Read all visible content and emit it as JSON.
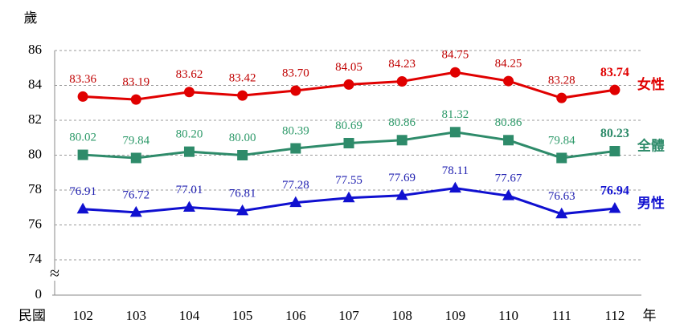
{
  "chart_data": {
    "type": "line",
    "y_label": "歲",
    "x_label_prefix": "民國",
    "x_label_suffix": "年",
    "categories": [
      "102",
      "103",
      "104",
      "105",
      "106",
      "107",
      "108",
      "109",
      "110",
      "111",
      "112"
    ],
    "series": [
      {
        "name": "女性",
        "color": "#e00000",
        "label_color": "#c00000",
        "marker": "circle",
        "values": [
          83.36,
          83.19,
          83.62,
          83.42,
          83.7,
          84.05,
          84.23,
          84.75,
          84.25,
          83.28,
          83.74
        ],
        "value_labels": [
          "83.36",
          "83.19",
          "83.62",
          "83.42",
          "83.70",
          "84.05",
          "84.23",
          "84.75",
          "84.25",
          "83.28",
          "83.74"
        ]
      },
      {
        "name": "全體",
        "color": "#2e8b6a",
        "label_color": "#2e9a6a",
        "marker": "square",
        "values": [
          80.02,
          79.84,
          80.2,
          80.0,
          80.39,
          80.69,
          80.86,
          81.32,
          80.86,
          79.84,
          80.23
        ],
        "value_labels": [
          "80.02",
          "79.84",
          "80.20",
          "80.00",
          "80.39",
          "80.69",
          "80.86",
          "81.32",
          "80.86",
          "79.84",
          "80.23"
        ]
      },
      {
        "name": "男性",
        "color": "#1010d0",
        "label_color": "#2020b0",
        "marker": "triangle",
        "values": [
          76.91,
          76.72,
          77.01,
          76.81,
          77.28,
          77.55,
          77.69,
          78.11,
          77.67,
          76.63,
          76.94
        ],
        "value_labels": [
          "76.91",
          "76.72",
          "77.01",
          "76.81",
          "77.28",
          "77.55",
          "77.69",
          "78.11",
          "77.67",
          "76.63",
          "76.94"
        ]
      }
    ],
    "ylim": [
      0,
      86
    ],
    "axis_break": [
      0,
      74
    ],
    "yticks": [
      0,
      74,
      76,
      78,
      80,
      82,
      84,
      86
    ],
    "grid": true,
    "highlight_last": true
  }
}
